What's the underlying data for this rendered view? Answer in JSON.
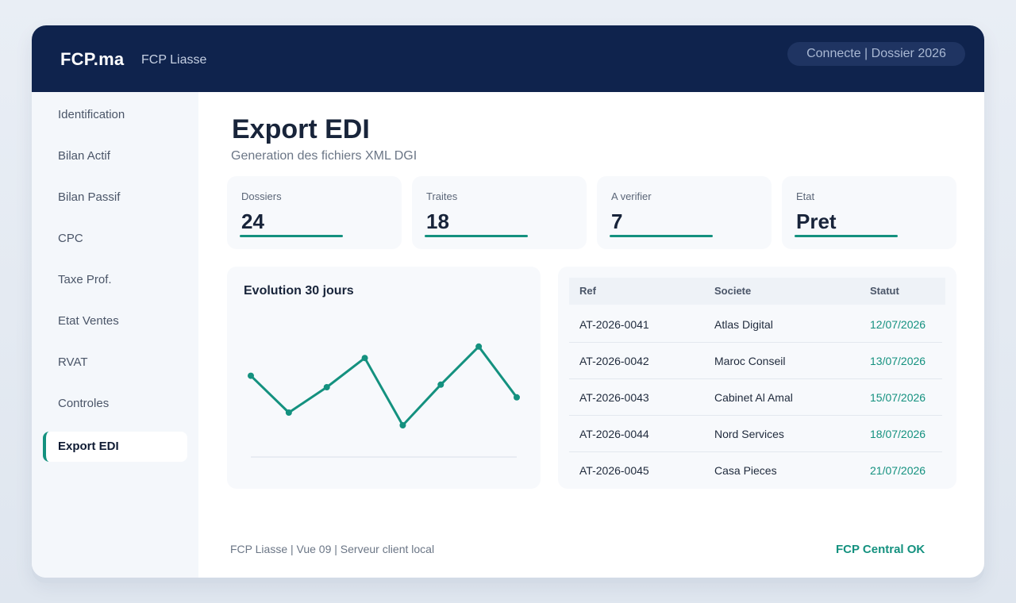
{
  "header": {
    "brand": "FCP.ma",
    "subtitle": "FCP Liasse",
    "status": "Connecte | Dossier 2026"
  },
  "sidebar": {
    "items": [
      {
        "label": "Identification"
      },
      {
        "label": "Bilan Actif"
      },
      {
        "label": "Bilan Passif"
      },
      {
        "label": "CPC"
      },
      {
        "label": "Taxe Prof."
      },
      {
        "label": "Etat Ventes"
      },
      {
        "label": "RVAT"
      },
      {
        "label": "Controles"
      },
      {
        "label": "Export EDI",
        "active": true
      }
    ]
  },
  "main": {
    "title": "Export EDI",
    "subtitle": "Generation des fichiers XML DGI"
  },
  "stats": [
    {
      "label": "Dossiers",
      "value": "24"
    },
    {
      "label": "Traites",
      "value": "18"
    },
    {
      "label": "A verifier",
      "value": "7"
    },
    {
      "label": "Etat",
      "value": "Pret"
    }
  ],
  "chart_data": {
    "type": "line",
    "title": "Evolution 30 jours",
    "xlabel": "",
    "ylabel": "",
    "x": [
      1,
      2,
      3,
      4,
      5,
      6,
      7,
      8
    ],
    "series": [
      {
        "values": [
          64,
          35,
          55,
          78,
          25,
          57,
          87,
          47
        ]
      }
    ],
    "ylim": [
      0,
      100
    ],
    "grid": false,
    "color": "#14917f"
  },
  "table": {
    "headers": [
      "Ref",
      "Societe",
      "Statut"
    ],
    "rows": [
      [
        "AT-2026-0041",
        "Atlas Digital",
        "12/07/2026"
      ],
      [
        "AT-2026-0042",
        "Maroc Conseil",
        "13/07/2026"
      ],
      [
        "AT-2026-0043",
        "Cabinet Al Amal",
        "15/07/2026"
      ],
      [
        "AT-2026-0044",
        "Nord Services",
        "18/07/2026"
      ],
      [
        "AT-2026-0045",
        "Casa Pieces",
        "21/07/2026"
      ]
    ]
  },
  "footer": {
    "left": "FCP Liasse | Vue 09 | Serveur client local",
    "right": "FCP Central OK"
  },
  "colors": {
    "header_bg": "#0f234d",
    "accent": "#14917f",
    "sidebar_bg": "#f4f7fb"
  }
}
